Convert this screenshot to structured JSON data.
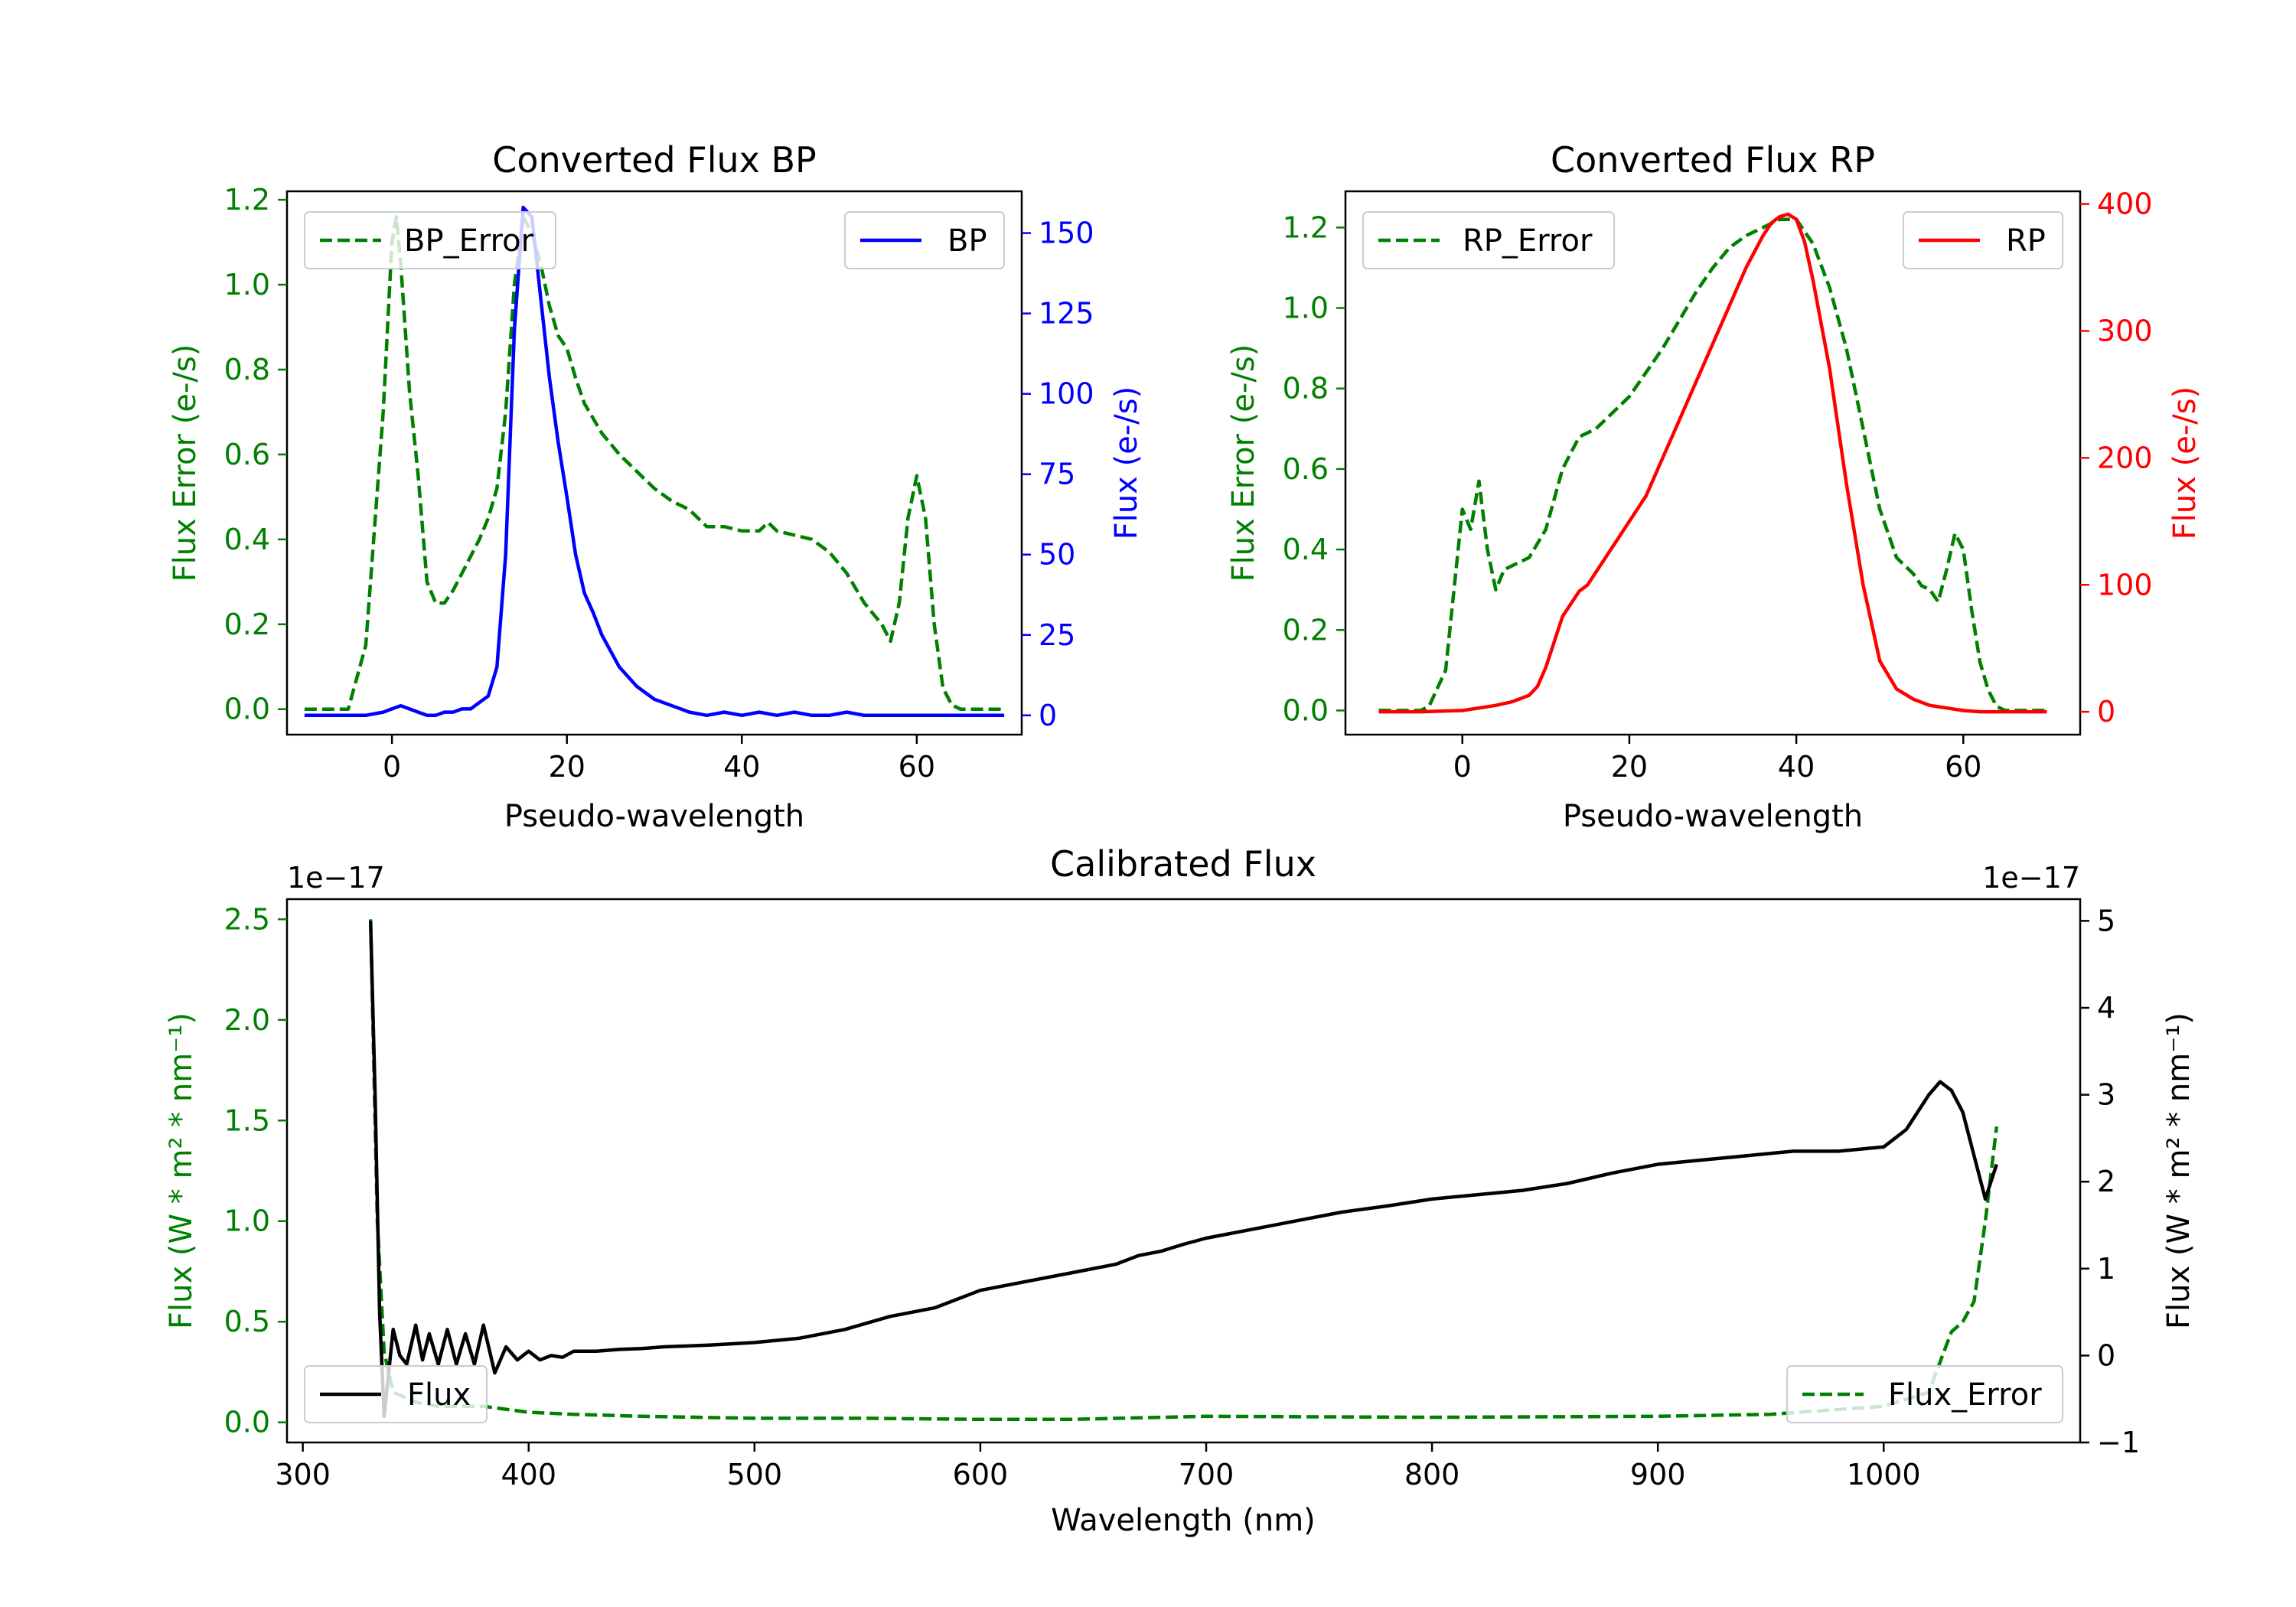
{
  "colors": {
    "error": "#008000",
    "bp": "#0000ff",
    "rp": "#ff0000",
    "flux": "#000000"
  },
  "chart_data": [
    {
      "id": "bp",
      "type": "line",
      "title": "Converted Flux BP",
      "xlabel": "Pseudo-wavelength",
      "ylabel_left": "Flux Error (e-/s)",
      "ylabel_right": "Flux (e-/s)",
      "xlim": [
        -12,
        72
      ],
      "xticks": [
        0,
        20,
        40,
        60
      ],
      "xtick_labels": [
        "0",
        "20",
        "40",
        "60"
      ],
      "ylim_left": [
        -0.06,
        1.22
      ],
      "yticks_left": [
        0.0,
        0.2,
        0.4,
        0.6,
        0.8,
        1.0,
        1.2
      ],
      "ytick_labels_left": [
        "0.0",
        "0.2",
        "0.4",
        "0.6",
        "0.8",
        "1.0",
        "1.2"
      ],
      "ylim_right": [
        -6,
        163
      ],
      "yticks_right": [
        0,
        25,
        50,
        75,
        100,
        125,
        150
      ],
      "ytick_labels_right": [
        "0",
        "25",
        "50",
        "75",
        "100",
        "125",
        "150"
      ],
      "legend_left": {
        "label": "BP_Error",
        "position": "upper left"
      },
      "legend_right": {
        "label": "BP",
        "position": "upper right"
      },
      "series": [
        {
          "name": "BP_Error",
          "axis": "left",
          "style": "dashed",
          "x": [
            -10,
            -5,
            -3,
            -1,
            0,
            0.5,
            1,
            2,
            3,
            4,
            5,
            6,
            7,
            8,
            9,
            10,
            11,
            12,
            13,
            14,
            15,
            16,
            17,
            18,
            19,
            20,
            21,
            22,
            24,
            26,
            28,
            30,
            32,
            34,
            36,
            38,
            40,
            42,
            43,
            44,
            46,
            48,
            50,
            52,
            54,
            56,
            57,
            58,
            59,
            60,
            61,
            62,
            63,
            64,
            65,
            70
          ],
          "y": [
            0.0,
            0.0,
            0.15,
            0.7,
            1.1,
            1.16,
            1.05,
            0.75,
            0.55,
            0.3,
            0.25,
            0.25,
            0.28,
            0.32,
            0.36,
            0.4,
            0.45,
            0.52,
            0.7,
            1.0,
            1.16,
            1.12,
            1.05,
            0.95,
            0.88,
            0.85,
            0.78,
            0.72,
            0.65,
            0.6,
            0.56,
            0.52,
            0.49,
            0.47,
            0.43,
            0.43,
            0.42,
            0.42,
            0.44,
            0.42,
            0.41,
            0.4,
            0.37,
            0.32,
            0.25,
            0.2,
            0.16,
            0.25,
            0.45,
            0.55,
            0.45,
            0.2,
            0.05,
            0.01,
            0.0,
            0.0
          ]
        },
        {
          "name": "BP",
          "axis": "right",
          "style": "solid",
          "x": [
            -10,
            -5,
            -3,
            -1,
            0,
            1,
            2,
            3,
            4,
            5,
            6,
            7,
            8,
            9,
            10,
            11,
            12,
            13,
            14,
            15,
            16,
            17,
            18,
            19,
            20,
            21,
            22,
            23,
            24,
            26,
            28,
            30,
            32,
            34,
            36,
            38,
            40,
            42,
            44,
            46,
            48,
            50,
            52,
            54,
            56,
            58,
            60,
            62,
            64,
            66,
            68,
            70
          ],
          "y": [
            0,
            0,
            0,
            1,
            2,
            3,
            2,
            1,
            0,
            0,
            1,
            1,
            2,
            2,
            4,
            6,
            15,
            50,
            120,
            158,
            155,
            130,
            105,
            85,
            68,
            50,
            38,
            32,
            25,
            15,
            9,
            5,
            3,
            1,
            0,
            1,
            0,
            1,
            0,
            1,
            0,
            0,
            1,
            0,
            0,
            0,
            0,
            0,
            0,
            0,
            0,
            0
          ]
        }
      ]
    },
    {
      "id": "rp",
      "type": "line",
      "title": "Converted Flux RP",
      "xlabel": "Pseudo-wavelength",
      "ylabel_left": "Flux Error (e-/s)",
      "ylabel_right": "Flux (e-/s)",
      "xlim": [
        -14,
        74
      ],
      "xticks": [
        0,
        20,
        40,
        60
      ],
      "xtick_labels": [
        "0",
        "20",
        "40",
        "60"
      ],
      "ylim_left": [
        -0.06,
        1.29
      ],
      "yticks_left": [
        0.0,
        0.2,
        0.4,
        0.6,
        0.8,
        1.0,
        1.2
      ],
      "ytick_labels_left": [
        "0.0",
        "0.2",
        "0.4",
        "0.6",
        "0.8",
        "1.0",
        "1.2"
      ],
      "ylim_right": [
        -18,
        410
      ],
      "yticks_right": [
        0,
        100,
        200,
        300,
        400
      ],
      "ytick_labels_right": [
        "0",
        "100",
        "200",
        "300",
        "400"
      ],
      "legend_left": {
        "label": "RP_Error",
        "position": "upper left"
      },
      "legend_right": {
        "label": "RP",
        "position": "upper right"
      },
      "series": [
        {
          "name": "RP_Error",
          "axis": "left",
          "style": "dashed",
          "x": [
            -10,
            -5,
            -4,
            -2,
            0,
            1,
            2,
            3,
            4,
            5,
            6,
            8,
            10,
            12,
            14,
            16,
            18,
            20,
            22,
            24,
            26,
            28,
            30,
            32,
            34,
            36,
            38,
            40,
            42,
            44,
            46,
            48,
            50,
            52,
            54,
            55,
            56,
            57,
            58,
            59,
            60,
            61,
            62,
            63,
            64,
            65,
            70
          ],
          "y": [
            0.0,
            0.0,
            0.01,
            0.1,
            0.5,
            0.45,
            0.57,
            0.4,
            0.3,
            0.35,
            0.36,
            0.38,
            0.45,
            0.6,
            0.68,
            0.7,
            0.74,
            0.78,
            0.84,
            0.9,
            0.97,
            1.04,
            1.1,
            1.15,
            1.18,
            1.2,
            1.22,
            1.22,
            1.16,
            1.05,
            0.9,
            0.7,
            0.5,
            0.38,
            0.34,
            0.31,
            0.3,
            0.27,
            0.35,
            0.44,
            0.4,
            0.25,
            0.12,
            0.05,
            0.01,
            0.0,
            0.0
          ]
        },
        {
          "name": "RP",
          "axis": "right",
          "style": "solid",
          "x": [
            -10,
            -5,
            0,
            2,
            4,
            6,
            8,
            9,
            10,
            11,
            12,
            13,
            14,
            15,
            16,
            18,
            20,
            22,
            24,
            26,
            28,
            30,
            32,
            34,
            36,
            37,
            38,
            39,
            40,
            41,
            42,
            44,
            46,
            48,
            50,
            52,
            54,
            56,
            58,
            60,
            62,
            64,
            70
          ],
          "y": [
            0,
            0,
            1,
            3,
            5,
            8,
            13,
            20,
            35,
            55,
            75,
            85,
            95,
            100,
            110,
            130,
            150,
            170,
            200,
            230,
            260,
            290,
            320,
            350,
            375,
            385,
            390,
            392,
            388,
            370,
            340,
            270,
            180,
            100,
            40,
            18,
            10,
            5,
            3,
            1,
            0,
            0,
            0
          ]
        }
      ]
    },
    {
      "id": "calibrated",
      "type": "line",
      "title": "Calibrated Flux",
      "xlabel": "Wavelength (nm)",
      "ylabel_left": "Flux (W * m² * nm⁻¹)",
      "ylabel_right": "Flux (W * m² * nm⁻¹)",
      "offset_left": "1e−17",
      "offset_right": "1e−17",
      "xlim": [
        293,
        1087
      ],
      "xticks": [
        300,
        400,
        500,
        600,
        700,
        800,
        900,
        1000
      ],
      "xtick_labels": [
        "300",
        "400",
        "500",
        "600",
        "700",
        "800",
        "900",
        "1000"
      ],
      "ylim_left": [
        -0.1,
        2.6
      ],
      "yticks_left": [
        0.0,
        0.5,
        1.0,
        1.5,
        2.0,
        2.5
      ],
      "ytick_labels_left": [
        "0.0",
        "0.5",
        "1.0",
        "1.5",
        "2.0",
        "2.5"
      ],
      "ylim_right": [
        -1.0,
        5.25
      ],
      "yticks_right": [
        -1,
        0,
        1,
        2,
        3,
        4,
        5
      ],
      "ytick_labels_right": [
        "−1",
        "0",
        "1",
        "2",
        "3",
        "4",
        "5"
      ],
      "legend_left": {
        "label": "Flux",
        "position": "lower left"
      },
      "legend_right": {
        "label": "Flux_Error",
        "position": "lower right"
      },
      "series": [
        {
          "name": "Flux_Error",
          "axis": "left",
          "style": "dashed",
          "x": [
            330,
            333,
            336,
            340,
            350,
            360,
            380,
            400,
            420,
            450,
            500,
            550,
            600,
            640,
            700,
            800,
            900,
            950,
            1000,
            1020,
            1025,
            1030,
            1035,
            1040,
            1045,
            1050
          ],
          "y": [
            2.5,
            1.0,
            0.35,
            0.15,
            0.1,
            0.08,
            0.08,
            0.05,
            0.04,
            0.03,
            0.02,
            0.02,
            0.015,
            0.015,
            0.03,
            0.025,
            0.03,
            0.04,
            0.08,
            0.15,
            0.3,
            0.45,
            0.5,
            0.6,
            1.0,
            1.47
          ]
        },
        {
          "name": "Flux",
          "axis": "right",
          "style": "solid",
          "x": [
            330,
            332,
            334,
            336,
            338,
            340,
            343,
            346,
            350,
            353,
            356,
            360,
            364,
            368,
            372,
            376,
            380,
            385,
            390,
            395,
            400,
            405,
            410,
            415,
            420,
            430,
            440,
            450,
            460,
            480,
            500,
            520,
            540,
            560,
            580,
            600,
            620,
            640,
            660,
            670,
            680,
            690,
            700,
            720,
            740,
            760,
            780,
            800,
            820,
            840,
            860,
            880,
            890,
            900,
            920,
            940,
            960,
            980,
            1000,
            1010,
            1020,
            1025,
            1030,
            1035,
            1040,
            1045,
            1050
          ],
          "y": [
            5.0,
            3.0,
            0.5,
            -0.7,
            -0.2,
            0.3,
            0.0,
            -0.1,
            0.35,
            -0.05,
            0.25,
            -0.1,
            0.3,
            -0.1,
            0.25,
            -0.1,
            0.35,
            -0.2,
            0.1,
            -0.05,
            0.05,
            -0.05,
            0.0,
            -0.02,
            0.05,
            0.05,
            0.07,
            0.08,
            0.1,
            0.12,
            0.15,
            0.2,
            0.3,
            0.45,
            0.55,
            0.75,
            0.85,
            0.95,
            1.05,
            1.15,
            1.2,
            1.28,
            1.35,
            1.45,
            1.55,
            1.65,
            1.72,
            1.8,
            1.85,
            1.9,
            1.98,
            2.1,
            2.15,
            2.2,
            2.25,
            2.3,
            2.35,
            2.35,
            2.4,
            2.6,
            3.0,
            3.15,
            3.05,
            2.8,
            2.3,
            1.8,
            2.2
          ]
        }
      ]
    }
  ]
}
